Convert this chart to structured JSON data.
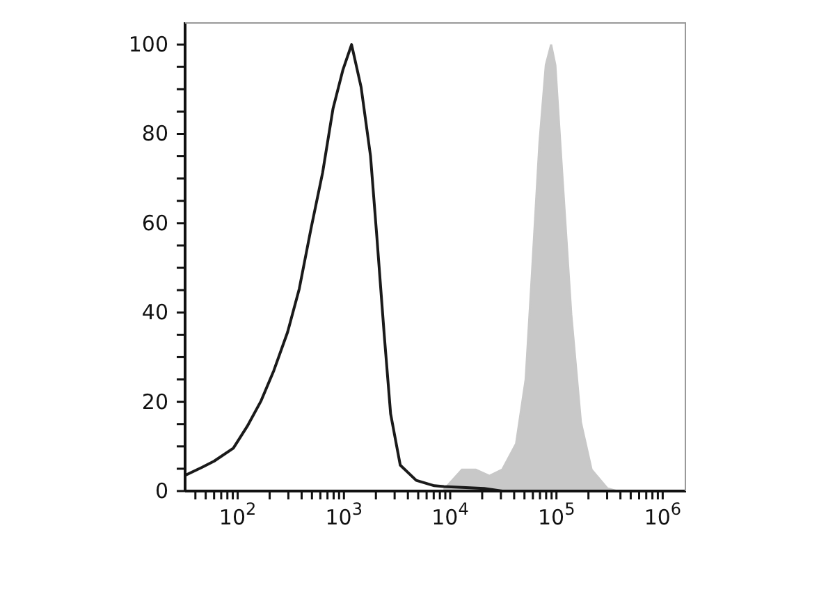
{
  "chart_data": {
    "type": "line",
    "log": "x",
    "grid": false,
    "xlim": [
      32,
      1660000
    ],
    "ylim": [
      0,
      105
    ],
    "xticks": [
      {
        "value": 40,
        "label": null
      },
      {
        "value": 50,
        "label": null
      },
      {
        "value": 60,
        "label": null
      },
      {
        "value": 70,
        "label": null
      },
      {
        "value": 80,
        "label": null
      },
      {
        "value": 90,
        "label": null
      },
      {
        "value": 100,
        "label": "10$^{2}$"
      },
      {
        "value": 200,
        "label": null
      },
      {
        "value": 300,
        "label": null
      },
      {
        "value": 400,
        "label": null
      },
      {
        "value": 500,
        "label": null
      },
      {
        "value": 600,
        "label": null
      },
      {
        "value": 700,
        "label": null
      },
      {
        "value": 800,
        "label": null
      },
      {
        "value": 900,
        "label": null
      },
      {
        "value": 1000,
        "label": "10$^{3}$"
      },
      {
        "value": 2000,
        "label": null
      },
      {
        "value": 3000,
        "label": null
      },
      {
        "value": 4000,
        "label": null
      },
      {
        "value": 5000,
        "label": null
      },
      {
        "value": 6000,
        "label": null
      },
      {
        "value": 7000,
        "label": null
      },
      {
        "value": 8000,
        "label": null
      },
      {
        "value": 9000,
        "label": null
      },
      {
        "value": 10000,
        "label": "10$^{4}$"
      },
      {
        "value": 20000,
        "label": null
      },
      {
        "value": 30000,
        "label": null
      },
      {
        "value": 40000,
        "label": null
      },
      {
        "value": 50000,
        "label": null
      },
      {
        "value": 60000,
        "label": null
      },
      {
        "value": 70000,
        "label": null
      },
      {
        "value": 80000,
        "label": null
      },
      {
        "value": 90000,
        "label": null
      },
      {
        "value": 100000,
        "label": "10$^{5}$"
      },
      {
        "value": 200000,
        "label": null
      },
      {
        "value": 300000,
        "label": null
      },
      {
        "value": 400000,
        "label": null
      },
      {
        "value": 500000,
        "label": null
      },
      {
        "value": 600000,
        "label": null
      },
      {
        "value": 700000,
        "label": null
      },
      {
        "value": 800000,
        "label": null
      },
      {
        "value": 900000,
        "label": null
      },
      {
        "value": 1000000,
        "label": "10$^{6}$"
      }
    ],
    "yticks": [
      0,
      {
        "value": 5,
        "label": null
      },
      {
        "value": 10,
        "label": null
      },
      {
        "value": 15,
        "label": null
      },
      20,
      {
        "value": 25,
        "label": null
      },
      {
        "value": 30,
        "label": null
      },
      {
        "value": 35,
        "label": null
      },
      40,
      {
        "value": 45,
        "label": null
      },
      {
        "value": 50,
        "label": null
      },
      {
        "value": 55,
        "label": null
      },
      60,
      {
        "value": 65,
        "label": null
      },
      {
        "value": 70,
        "label": null
      },
      {
        "value": 75,
        "label": null
      },
      80,
      {
        "value": 85,
        "label": null
      },
      {
        "value": 90,
        "label": null
      },
      {
        "value": 95,
        "label": null
      },
      100
    ],
    "series": [
      {
        "type": "area",
        "color": "#c8c8c8",
        "x": [
          8710,
          12900,
          17400,
          23400,
          30900,
          41700,
          51300,
          58900,
          69200,
          79400,
          89100,
          97700,
          112000,
          138000,
          170000,
          214000,
          302000,
          372000
        ],
        "values": [
          0.3,
          4.8,
          4.8,
          3.4,
          4.8,
          10.6,
          25,
          49,
          78,
          95.4,
          100,
          95.4,
          73,
          39.5,
          15.4,
          4.8,
          0.6,
          0
        ]
      },
      {
        "type": "line",
        "color": "#1a1a1a",
        "x": [
          32,
          46,
          60,
          91,
          123,
          166,
          219,
          295,
          380,
          490,
          630,
          790,
          980,
          1180,
          1450,
          1780,
          2040,
          2400,
          2750,
          3390,
          4790,
          7080,
          8710,
          20900,
          30900
        ],
        "values": [
          3.5,
          5.3,
          6.7,
          9.6,
          14.5,
          20.2,
          27,
          35.6,
          45.3,
          58.8,
          71.3,
          85.7,
          94.4,
          100,
          90.5,
          75,
          57,
          34.7,
          17.3,
          5.8,
          2.4,
          1.2,
          1,
          0.6,
          0
        ]
      }
    ]
  }
}
